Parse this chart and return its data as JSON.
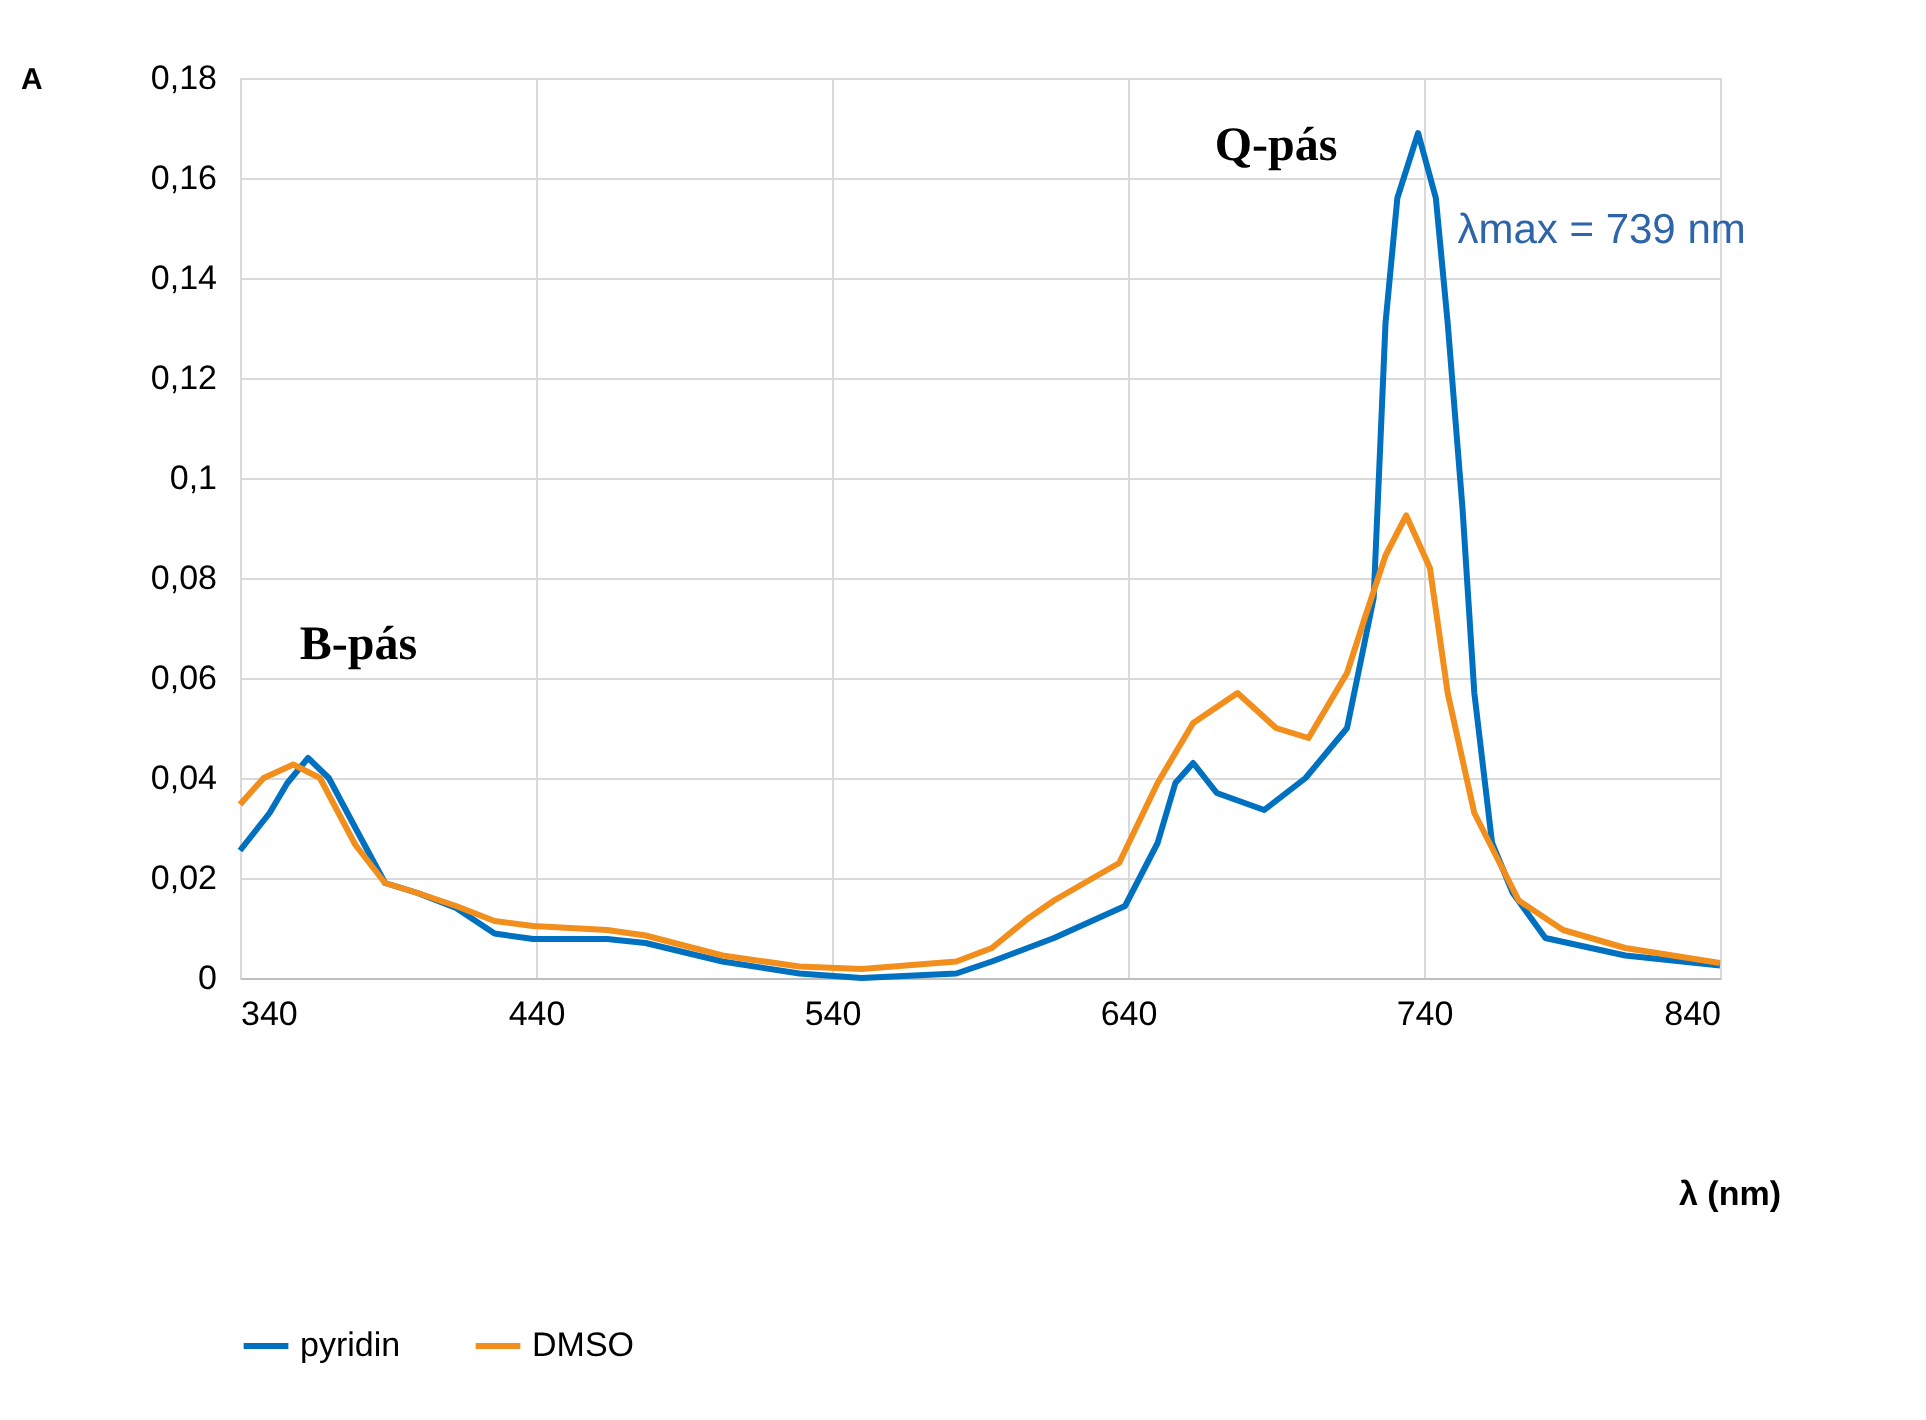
{
  "chart_data": {
    "type": "line",
    "xlabel": "λ (nm)",
    "ylabel": "A",
    "xlim": [
      340,
      840
    ],
    "xticks": [
      340,
      440,
      540,
      640,
      740,
      840
    ],
    "ylim": [
      0,
      0.18
    ],
    "yticks": [
      0,
      {
        "value": 0.02,
        "label": "0,02"
      },
      {
        "value": 0.04,
        "label": "0,04"
      },
      {
        "value": 0.06,
        "label": "0,06"
      },
      {
        "value": 0.08,
        "label": "0,08"
      },
      {
        "value": 0.1,
        "label": "0,1"
      },
      {
        "value": 0.12,
        "label": "0,12"
      },
      {
        "value": 0.14,
        "label": "0,14"
      },
      {
        "value": 0.16,
        "label": "0,16"
      },
      {
        "value": 0.18,
        "label": "0,18"
      }
    ],
    "grid": true,
    "legend": "bottom",
    "marker": "none",
    "line_style": "solid",
    "series": [
      {
        "name": "pyridin",
        "color": "#0070c0",
        "x": [
          340,
          350,
          356,
          363,
          370,
          379,
          389,
          400,
          413,
          426,
          439,
          464,
          477,
          503,
          529,
          550,
          582,
          594,
          615,
          639,
          650,
          656,
          662,
          670,
          686,
          700,
          714,
          723,
          727,
          731,
          738,
          744,
          748,
          753,
          757,
          763,
          770,
          781,
          808,
          840
        ],
        "values": [
          0.0255,
          0.033,
          0.039,
          0.044,
          0.04,
          0.03,
          0.019,
          0.017,
          0.014,
          0.0089,
          0.0078,
          0.0078,
          0.007,
          0.0033,
          0.0009,
          0.0,
          0.0009,
          0.0033,
          0.008,
          0.0144,
          0.027,
          0.039,
          0.043,
          0.037,
          0.0336,
          0.04,
          0.05,
          0.076,
          0.131,
          0.156,
          0.169,
          0.156,
          0.131,
          0.094,
          0.057,
          0.027,
          0.017,
          0.008,
          0.0045,
          0.0025
        ]
      },
      {
        "name": "DMSO",
        "color": "#f28e1c",
        "x": [
          340,
          348,
          358,
          367,
          379,
          389,
          400,
          413,
          426,
          439,
          464,
          477,
          503,
          529,
          550,
          582,
          594,
          606,
          615,
          637,
          650,
          662,
          677,
          690,
          701,
          714,
          720,
          727,
          734,
          742,
          748,
          757,
          772,
          787,
          808,
          840
        ],
        "values": [
          0.0347,
          0.04,
          0.0427,
          0.04,
          0.0266,
          0.019,
          0.017,
          0.0144,
          0.0114,
          0.0104,
          0.0096,
          0.0085,
          0.0045,
          0.0023,
          0.0018,
          0.0033,
          0.006,
          0.0118,
          0.0155,
          0.023,
          0.039,
          0.051,
          0.057,
          0.05,
          0.048,
          0.061,
          0.072,
          0.0845,
          0.0925,
          0.082,
          0.057,
          0.033,
          0.0155,
          0.0096,
          0.006,
          0.003
        ]
      }
    ],
    "annotations": [
      "B-pás",
      "Q-pás",
      "λmax = 739 nm"
    ]
  }
}
